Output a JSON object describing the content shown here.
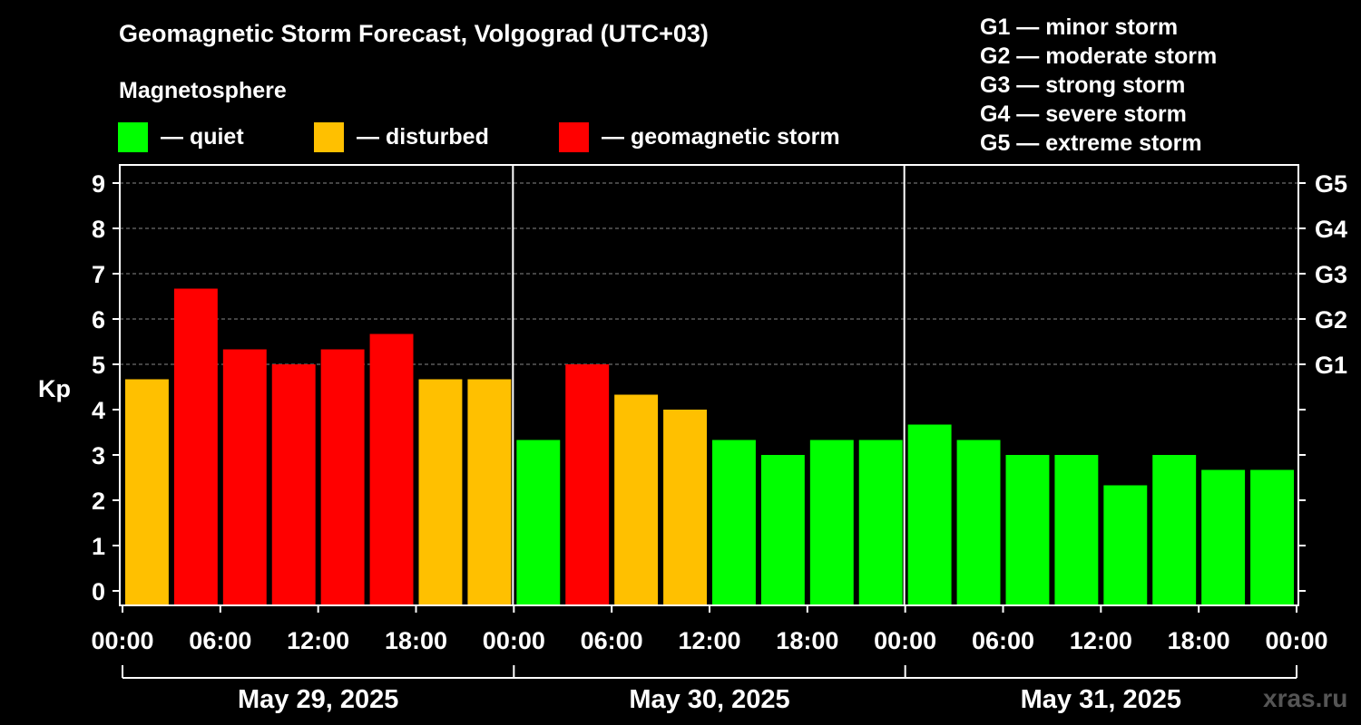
{
  "title": "Geomagnetic Storm Forecast, Volgograd (UTC+03)",
  "magnetosphere_label": "Magnetosphere",
  "legend": [
    {
      "color": "#00ff00",
      "label": "— quiet"
    },
    {
      "color": "#ffc000",
      "label": "— disturbed"
    },
    {
      "color": "#ff0000",
      "label": "— geomagnetic storm"
    }
  ],
  "g_scale_legend": [
    "G1 — minor storm",
    "G2 — moderate storm",
    "G3 — strong storm",
    "G4 — severe storm",
    "G5 — extreme storm"
  ],
  "watermark": "xras.ru",
  "chart_data": {
    "type": "bar",
    "ylabel": "Kp",
    "ylim": [
      0,
      9
    ],
    "yticks": [
      0,
      1,
      2,
      3,
      4,
      5,
      6,
      7,
      8,
      9
    ],
    "grid": "dashed at Kp 5-9",
    "right_axis_labels": [
      {
        "kp": 5,
        "label": "G1"
      },
      {
        "kp": 6,
        "label": "G2"
      },
      {
        "kp": 7,
        "label": "G3"
      },
      {
        "kp": 8,
        "label": "G4"
      },
      {
        "kp": 9,
        "label": "G5"
      }
    ],
    "x_tick_labels": [
      "00:00",
      "06:00",
      "12:00",
      "18:00",
      "00:00",
      "06:00",
      "12:00",
      "18:00",
      "00:00",
      "06:00",
      "12:00",
      "18:00",
      "00:00"
    ],
    "days": [
      "May 29, 2025",
      "May 30, 2025",
      "May 31, 2025"
    ],
    "interval_hours": 3,
    "values": [
      4.67,
      6.67,
      5.33,
      5.0,
      5.33,
      5.67,
      4.67,
      4.67,
      3.33,
      5.0,
      4.33,
      4.0,
      3.33,
      3.0,
      3.33,
      3.33,
      3.67,
      3.33,
      3.0,
      3.0,
      2.33,
      3.0,
      2.67,
      2.67
    ],
    "colors": {
      "quiet": "#00ff00",
      "disturbed": "#ffc000",
      "storm": "#ff0000"
    },
    "thresholds": {
      "disturbed_min": 4,
      "storm_min": 5
    }
  }
}
